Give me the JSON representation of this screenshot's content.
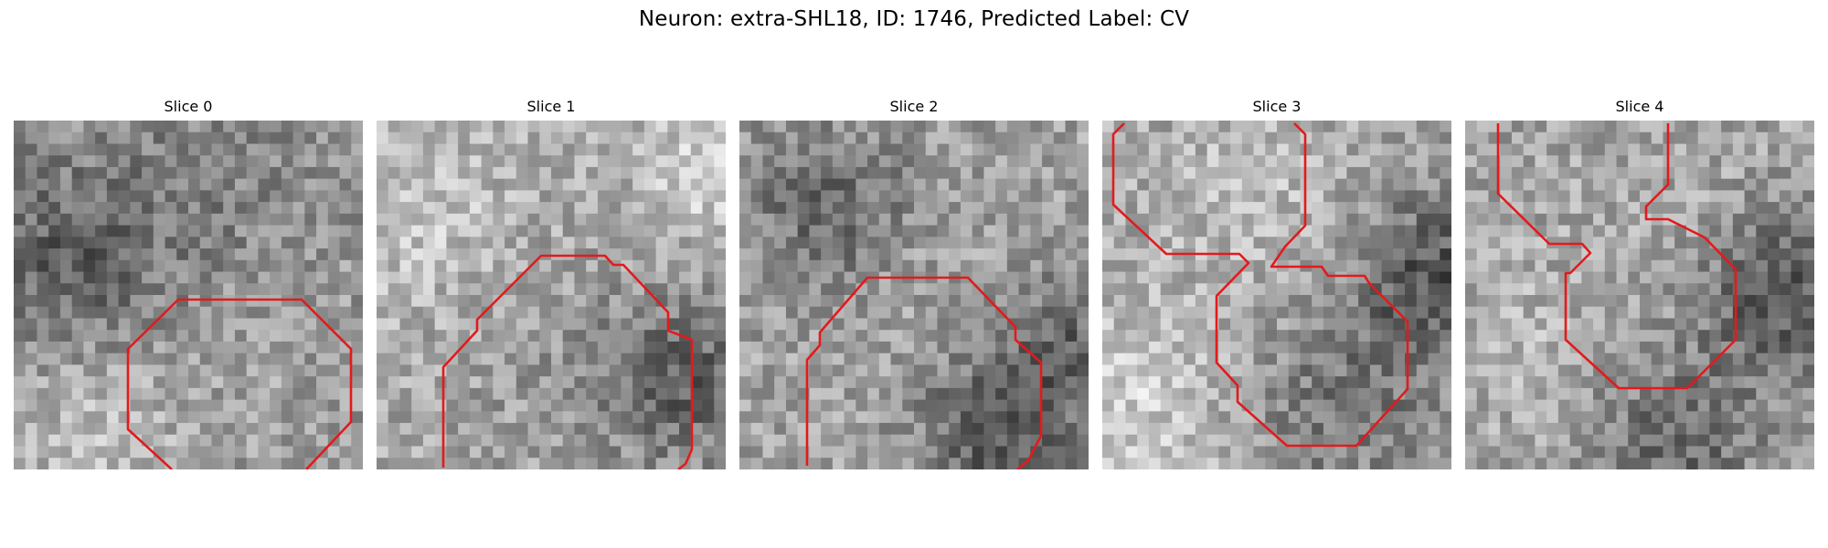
{
  "figure": {
    "title": "Neuron: extra-SHL18, ID: 1746, Predicted Label: CV",
    "panels": [
      {
        "title": "Slice 0",
        "contour_color": "#e31a1c"
      },
      {
        "title": "Slice 1",
        "contour_color": "#e31a1c"
      },
      {
        "title": "Slice 2",
        "contour_color": "#e31a1c"
      },
      {
        "title": "Slice 3",
        "contour_color": "#e31a1c"
      },
      {
        "title": "Slice 4",
        "contour_color": "#e31a1c"
      }
    ],
    "colormap": "gray"
  }
}
